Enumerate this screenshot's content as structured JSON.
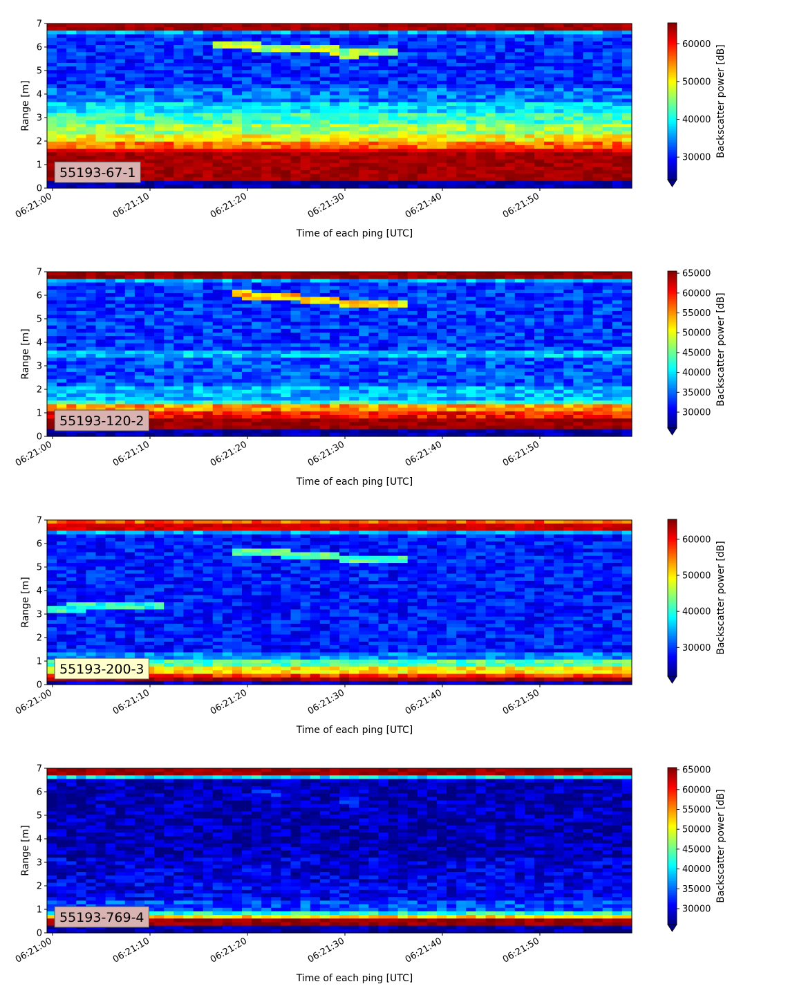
{
  "chart_data": [
    {
      "type": "heatmap",
      "label": "55193-67-1",
      "label_bg": "#d9b2b2",
      "xlabel": "Time of each ping [UTC]",
      "ylabel": "Range [m]",
      "ylim": [
        0,
        7
      ],
      "yticks": [
        "0",
        "1",
        "2",
        "3",
        "4",
        "5",
        "6",
        "7"
      ],
      "x_start": "06:21:00",
      "x_end": "06:21:59",
      "xticks": [
        "06:21:00",
        "06:21:10",
        "06:21:20",
        "06:21:30",
        "06:21:40",
        "06:21:50"
      ],
      "colorbar": {
        "label": "Backscatter power [dB]",
        "vmin": 24000,
        "vmax": 65535,
        "ticks": [
          "30000",
          "40000",
          "50000",
          "60000"
        ],
        "tick_values": [
          30000,
          40000,
          50000,
          60000
        ],
        "extend": "min"
      },
      "profile": [
        [
          0.0,
          0.25,
          25000
        ],
        [
          0.25,
          1.5,
          64000
        ],
        [
          1.5,
          1.75,
          61000
        ],
        [
          1.75,
          2.05,
          56000
        ],
        [
          2.05,
          2.35,
          50000
        ],
        [
          2.35,
          2.8,
          46000
        ],
        [
          2.8,
          3.2,
          42000
        ],
        [
          3.2,
          3.6,
          38000
        ],
        [
          3.6,
          4.2,
          34000
        ],
        [
          4.2,
          6.6,
          31000
        ],
        [
          6.6,
          6.72,
          36000
        ],
        [
          6.72,
          7.0,
          64000
        ]
      ],
      "echo": [
        {
          "t0": 17,
          "t1": 30,
          "r0": 6.1,
          "r1": 5.85,
          "v": 47000
        },
        {
          "t0": 30,
          "t1": 36,
          "r0": 5.7,
          "r1": 5.75,
          "v": 46000
        }
      ]
    },
    {
      "type": "heatmap",
      "label": "55193-120-2",
      "label_bg": "#d9b2b2",
      "xlabel": "Time of each ping [UTC]",
      "ylabel": "Range [m]",
      "ylim": [
        0,
        7
      ],
      "yticks": [
        "0",
        "1",
        "2",
        "3",
        "4",
        "5",
        "6",
        "7"
      ],
      "x_start": "06:21:00",
      "x_end": "06:21:59",
      "xticks": [
        "06:21:00",
        "06:21:10",
        "06:21:20",
        "06:21:30",
        "06:21:40",
        "06:21:50"
      ],
      "colorbar": {
        "label": "Backscatter power [dB]",
        "vmin": 26000,
        "vmax": 65535,
        "ticks": [
          "30000",
          "35000",
          "40000",
          "45000",
          "50000",
          "55000",
          "60000",
          "65000"
        ],
        "tick_values": [
          30000,
          35000,
          40000,
          45000,
          50000,
          55000,
          60000,
          65000
        ],
        "extend": "min"
      },
      "profile": [
        [
          0.0,
          0.25,
          27000
        ],
        [
          0.25,
          0.8,
          64500
        ],
        [
          0.8,
          1.0,
          60000
        ],
        [
          1.0,
          1.3,
          55000
        ],
        [
          1.3,
          1.5,
          42000
        ],
        [
          1.5,
          2.2,
          38000
        ],
        [
          2.2,
          3.3,
          34000
        ],
        [
          3.3,
          3.7,
          38500
        ],
        [
          3.7,
          6.6,
          33000
        ],
        [
          6.6,
          6.72,
          38000
        ],
        [
          6.72,
          7.0,
          64500
        ]
      ],
      "echo": [
        {
          "t0": 19,
          "t1": 30,
          "r0": 6.05,
          "r1": 5.75,
          "v": 53000
        },
        {
          "t0": 30,
          "t1": 37,
          "r0": 5.65,
          "r1": 5.65,
          "v": 52000
        }
      ]
    },
    {
      "type": "heatmap",
      "label": "55193-200-3",
      "label_bg": "#ffffcc",
      "xlabel": "Time of each ping [UTC]",
      "ylabel": "Range [m]",
      "ylim": [
        0,
        7
      ],
      "yticks": [
        "0",
        "1",
        "2",
        "3",
        "4",
        "5",
        "6",
        "7"
      ],
      "x_start": "06:21:00",
      "x_end": "06:21:59",
      "xticks": [
        "06:21:00",
        "06:21:10",
        "06:21:20",
        "06:21:30",
        "06:21:40",
        "06:21:50"
      ],
      "colorbar": {
        "label": "Backscatter power [dB]",
        "vmin": 22000,
        "vmax": 65535,
        "ticks": [
          "30000",
          "40000",
          "50000",
          "60000"
        ],
        "tick_values": [
          30000,
          40000,
          50000,
          60000
        ],
        "extend": "min"
      },
      "profile": [
        [
          0.0,
          0.1,
          25000
        ],
        [
          0.1,
          0.3,
          64000
        ],
        [
          0.3,
          0.5,
          58000
        ],
        [
          0.5,
          0.7,
          50000
        ],
        [
          0.7,
          1.0,
          42000
        ],
        [
          1.0,
          1.3,
          33000
        ],
        [
          1.3,
          6.45,
          28500
        ],
        [
          6.45,
          6.6,
          35000
        ],
        [
          6.6,
          6.9,
          62000
        ],
        [
          6.9,
          7.0,
          56000
        ]
      ],
      "echo": [
        {
          "t0": 0,
          "t1": 12,
          "r0": 3.25,
          "r1": 3.35,
          "v": 40000
        },
        {
          "t0": 19,
          "t1": 30,
          "r0": 5.65,
          "r1": 5.45,
          "v": 42000
        },
        {
          "t0": 30,
          "t1": 37,
          "r0": 5.3,
          "r1": 5.35,
          "v": 42000
        }
      ]
    },
    {
      "type": "heatmap",
      "label": "55193-769-4",
      "label_bg": "#d9b2b2",
      "xlabel": "Time of each ping [UTC]",
      "ylabel": "Range [m]",
      "ylim": [
        0,
        7
      ],
      "yticks": [
        "0",
        "1",
        "2",
        "3",
        "4",
        "5",
        "6",
        "7"
      ],
      "x_start": "06:21:00",
      "x_end": "06:21:59",
      "xticks": [
        "06:21:00",
        "06:21:10",
        "06:21:20",
        "06:21:30",
        "06:21:40",
        "06:21:50"
      ],
      "colorbar": {
        "label": "Backscatter power [dB]",
        "vmin": 26000,
        "vmax": 65535,
        "ticks": [
          "30000",
          "35000",
          "40000",
          "45000",
          "50000",
          "55000",
          "60000",
          "65000"
        ],
        "tick_values": [
          30000,
          35000,
          40000,
          45000,
          50000,
          55000,
          60000,
          65000
        ],
        "extend": "min"
      },
      "profile": [
        [
          0.0,
          0.25,
          27000
        ],
        [
          0.25,
          0.65,
          64500
        ],
        [
          0.65,
          0.8,
          52000
        ],
        [
          0.8,
          0.9,
          42000
        ],
        [
          0.9,
          1.4,
          34000
        ],
        [
          1.4,
          2.2,
          30500
        ],
        [
          2.2,
          3.2,
          29500
        ],
        [
          3.2,
          6.6,
          28000
        ],
        [
          6.6,
          6.7,
          40000
        ],
        [
          6.7,
          7.0,
          64500
        ]
      ],
      "echo": [
        {
          "t0": 21,
          "t1": 25,
          "r0": 5.9,
          "r1": 5.85,
          "v": 31500
        },
        {
          "t0": 30,
          "t1": 33,
          "r0": 5.55,
          "r1": 5.55,
          "v": 31000
        }
      ]
    }
  ]
}
